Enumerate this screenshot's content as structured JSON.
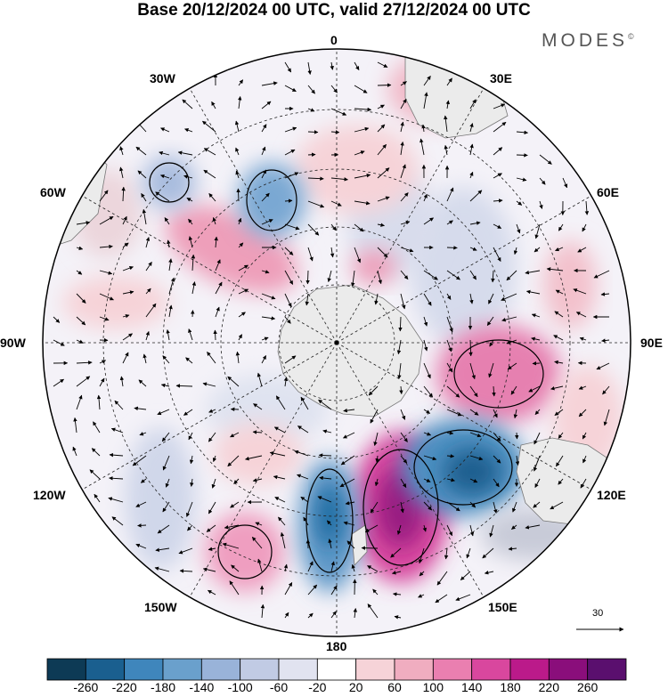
{
  "title": "Base 20/12/2024 00 UTC, valid 27/12/2024 00 UTC",
  "brand": "MODES",
  "brand_mark": "©",
  "longitude_labels": {
    "lon_0": "0",
    "lon_30e": "30E",
    "lon_60e": "60E",
    "lon_90e": "90E",
    "lon_120e": "120E",
    "lon_150e": "150E",
    "lon_180": "180",
    "lon_150w": "150W",
    "lon_120w": "120W",
    "lon_90w": "90W",
    "lon_60w": "60W",
    "lon_30w": "30W"
  },
  "reference_vector": {
    "label": "30"
  },
  "colorbar": {
    "levels": [
      "-260",
      "-220",
      "-180",
      "-140",
      "-100",
      "-60",
      "-20",
      "20",
      "60",
      "100",
      "140",
      "180",
      "220",
      "260"
    ],
    "colors": [
      "#0d3a55",
      "#1a5f8f",
      "#3f86bc",
      "#6aa0cc",
      "#99b3d9",
      "#c1cbe4",
      "#e1e3f0",
      "#ffffff",
      "#f6d3d8",
      "#f0adc0",
      "#ea7fb0",
      "#d9479e",
      "#bb1a8a",
      "#8a0e7b",
      "#5a0f6e"
    ]
  },
  "map_data": {
    "projection": "south-polar-stereographic",
    "field": "geopotential height anomaly with wind vectors",
    "features": [
      {
        "name": "ridge",
        "lon": 160,
        "value": 220
      },
      {
        "name": "trough",
        "lon": 180,
        "value": -180
      },
      {
        "name": "trough",
        "lon": 125,
        "value": -220
      },
      {
        "name": "ridge",
        "lon": 100,
        "value": 180
      },
      {
        "name": "trough",
        "lon": -30,
        "value": -140
      },
      {
        "name": "ridge",
        "lon": -55,
        "value": 100
      },
      {
        "name": "trough",
        "lon": -60,
        "value": -100
      },
      {
        "name": "ridge",
        "lon": -150,
        "value": 140
      },
      {
        "name": "ridge",
        "lon": 25,
        "value": 60
      }
    ]
  }
}
